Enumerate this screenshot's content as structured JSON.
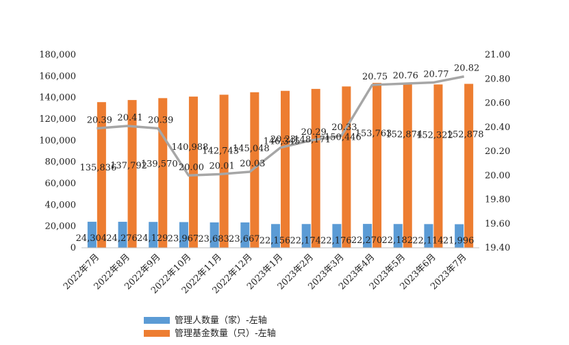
{
  "chart_data": {
    "type": "bar",
    "categories": [
      "2022年7月",
      "2022年8月",
      "2022年9月",
      "2022年10月",
      "2022年11月",
      "2022年12月",
      "2023年1月",
      "2023年2月",
      "2023年3月",
      "2023年4月",
      "2023年5月",
      "2023年6月",
      "2023年7月"
    ],
    "series": [
      {
        "name": "管理人数量（家）-左轴",
        "type": "bar",
        "axis": "left",
        "color": "#5b9bd5",
        "values": [
          24304,
          24276,
          24129,
          23967,
          23683,
          23667,
          22156,
          22174,
          22176,
          22270,
          22182,
          22114,
          21996
        ],
        "labels": [
          "24,304",
          "24,276",
          "24,129",
          "23,967",
          "23,683",
          "23,667",
          "22,156",
          "22,174",
          "22,176",
          "22,270",
          "22,182",
          "22,114",
          "21,996"
        ]
      },
      {
        "name": "管理基金数量（只）-左轴",
        "type": "bar",
        "axis": "left",
        "color": "#ed7d31",
        "values": [
          135836,
          137792,
          139570,
          140988,
          142743,
          145048,
          146345,
          148171,
          150446,
          153763,
          152874,
          152322,
          152878
        ],
        "labels": [
          "135,836",
          "137,792",
          "139,570",
          "140,988",
          "142,743",
          "145,048",
          "146,345",
          "148,171",
          "150,446",
          "153,763",
          "152,874",
          "152,322",
          "152,878"
        ]
      },
      {
        "type": "line",
        "axis": "right",
        "color": "#a6a6a6",
        "values": [
          20.39,
          20.41,
          20.39,
          20.0,
          20.01,
          20.03,
          20.23,
          20.29,
          20.33,
          20.75,
          20.76,
          20.77,
          20.82
        ],
        "labels": [
          "20.39",
          "20.41",
          "20.39",
          "20.00",
          "20.01",
          "20.03",
          "20.23",
          "20.29",
          "20.33",
          "20.75",
          "20.76",
          "20.77",
          "20.82"
        ]
      }
    ],
    "y_left": {
      "min": 0,
      "max": 180000,
      "ticks": [
        "0",
        "20,000",
        "40,000",
        "60,000",
        "80,000",
        "100,000",
        "120,000",
        "140,000",
        "160,000",
        "180,000"
      ]
    },
    "y_right": {
      "min": 19.4,
      "max": 21.0,
      "ticks": [
        "19.40",
        "19.60",
        "19.80",
        "20.00",
        "20.20",
        "20.40",
        "20.60",
        "20.80",
        "21.00"
      ]
    },
    "grid": false,
    "legend_position": "bottom"
  }
}
